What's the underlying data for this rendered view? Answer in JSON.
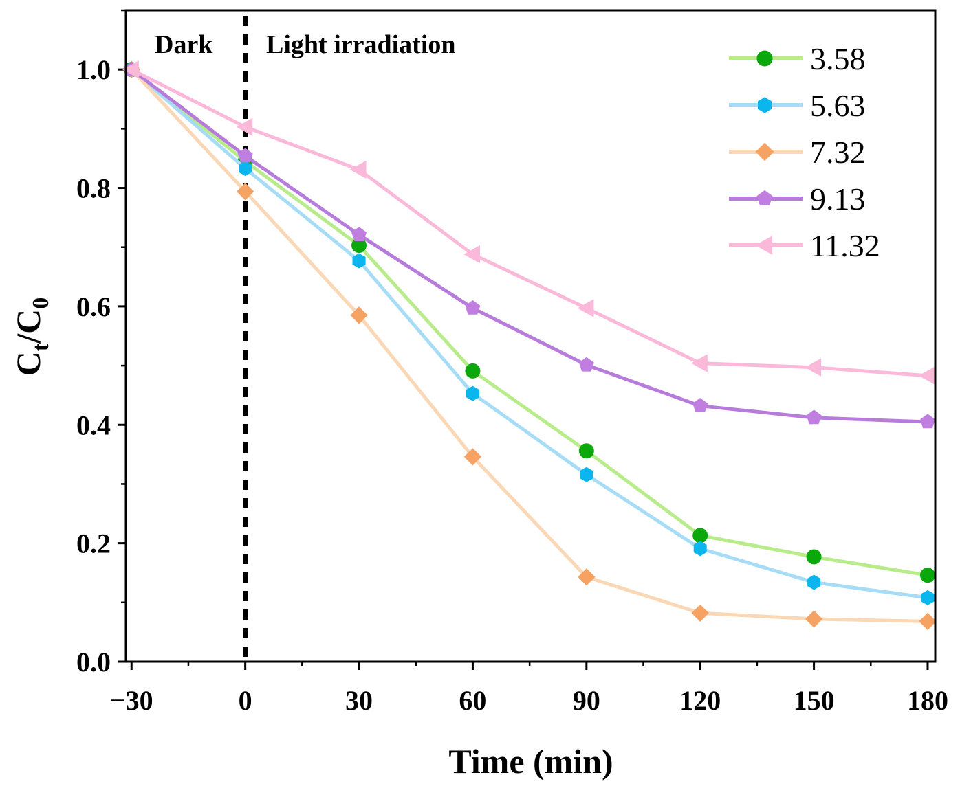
{
  "chart_data": {
    "type": "line",
    "title": "",
    "xlabel": "Time (min)",
    "ylabel": {
      "main": "C",
      "sub1": "t",
      "slash": "/C",
      "sub2": "0"
    },
    "x": [
      -30,
      0,
      30,
      60,
      90,
      120,
      150,
      180
    ],
    "xlim": [
      -31.5,
      182
    ],
    "ylim": [
      0.0,
      1.1
    ],
    "xticks": [
      -30,
      0,
      30,
      60,
      90,
      120,
      150,
      180
    ],
    "xtick_labels": [
      "−30",
      "0",
      "30",
      "60",
      "90",
      "120",
      "150",
      "180"
    ],
    "yticks": [
      0.0,
      0.2,
      0.4,
      0.6,
      0.8,
      1.0
    ],
    "ytick_labels": [
      "0.0",
      "0.2",
      "0.4",
      "0.6",
      "0.8",
      "1.0"
    ],
    "divider_x": 0,
    "annotations": {
      "dark": "Dark",
      "light": "Light irradiation"
    },
    "legend_position": "top-right",
    "series": [
      {
        "name": "3.58",
        "line_color": "#b8eb8a",
        "marker_color": "#0aa80a",
        "marker": "circle",
        "values": [
          1.0,
          0.845,
          0.703,
          0.491,
          0.356,
          0.213,
          0.177,
          0.146
        ]
      },
      {
        "name": "5.63",
        "line_color": "#a6dcf5",
        "marker_color": "#0bb6ee",
        "marker": "hexagon",
        "values": [
          1.0,
          0.833,
          0.677,
          0.453,
          0.316,
          0.191,
          0.134,
          0.108
        ]
      },
      {
        "name": "7.32",
        "line_color": "#fad7b5",
        "marker_color": "#f6a263",
        "marker": "diamond",
        "values": [
          1.0,
          0.794,
          0.585,
          0.346,
          0.143,
          0.082,
          0.072,
          0.068
        ]
      },
      {
        "name": "9.13",
        "line_color": "#b77bdc",
        "marker_color": "#c07fe0",
        "marker": "pentagon",
        "values": [
          1.0,
          0.854,
          0.721,
          0.597,
          0.501,
          0.432,
          0.412,
          0.405
        ]
      },
      {
        "name": "11.32",
        "line_color": "#fbb9da",
        "marker_color": "#fbb9da",
        "marker": "triangle-left",
        "values": [
          1.0,
          0.903,
          0.831,
          0.688,
          0.597,
          0.504,
          0.497,
          0.483
        ]
      }
    ]
  }
}
